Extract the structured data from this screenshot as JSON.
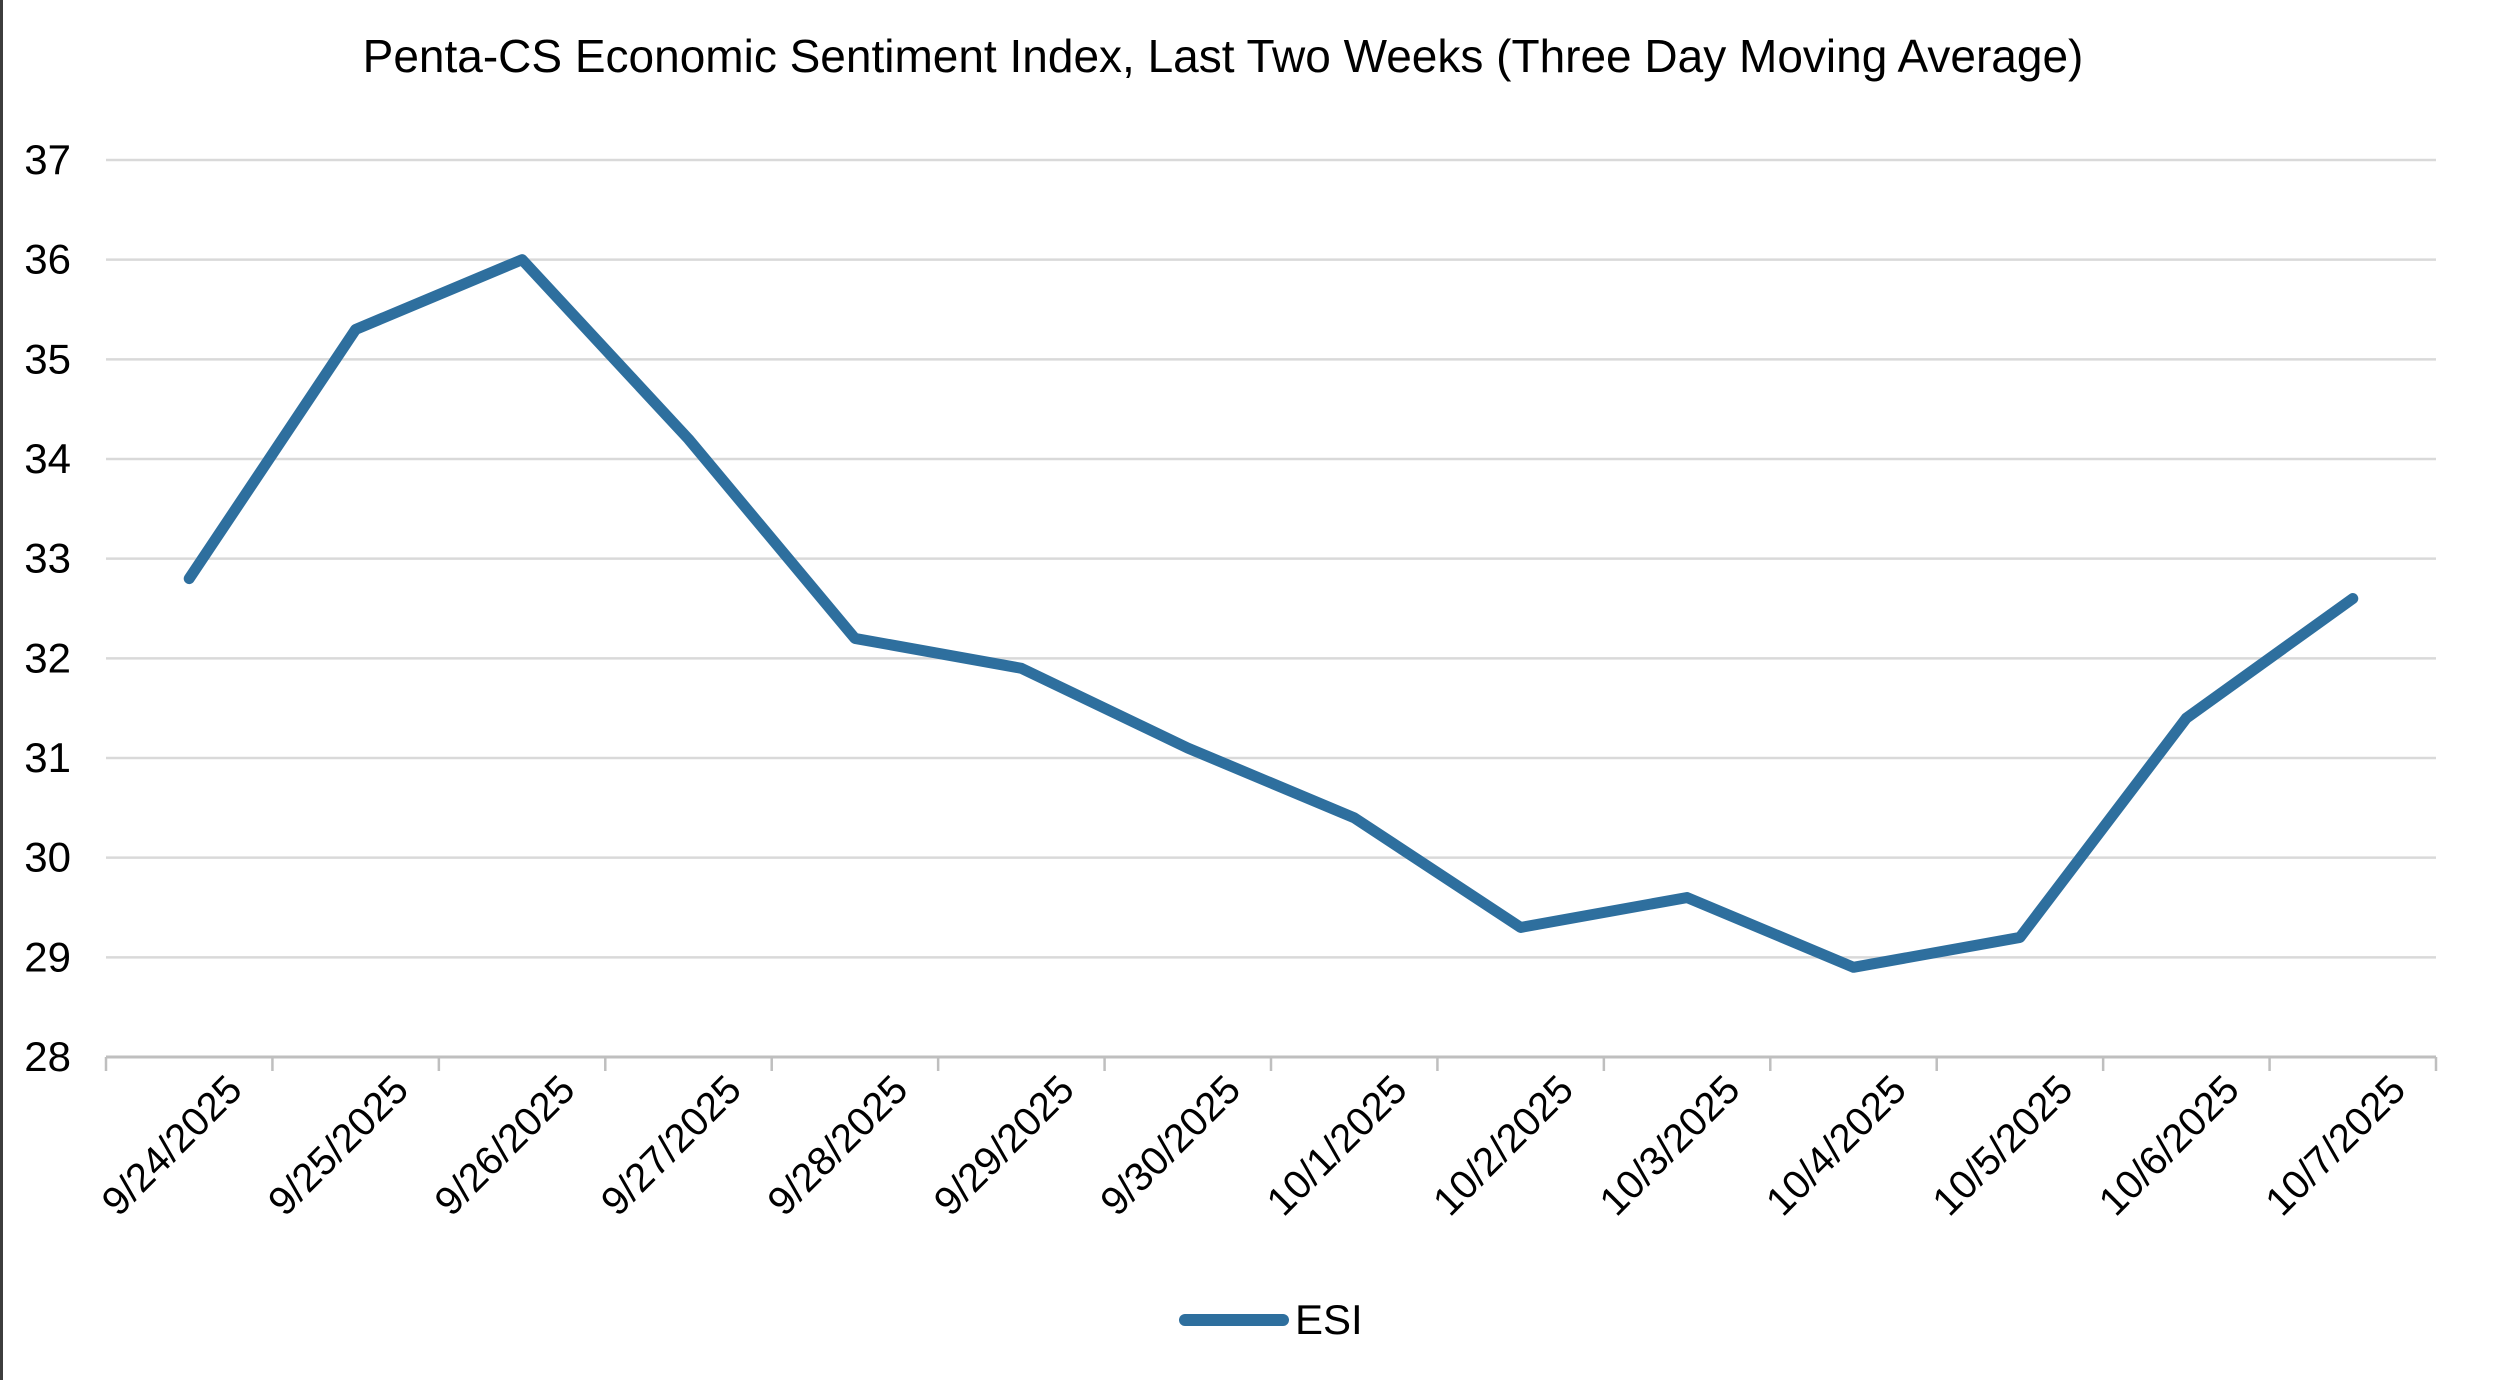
{
  "window": {
    "left_border_color": "#3d3d3d"
  },
  "chart_data": {
    "type": "line",
    "title": "Penta-CS Economic Sentiment Index, Last Two Weeks (Three Day Moving Average)",
    "categories": [
      "9/24/2025",
      "9/25/2025",
      "9/26/2025",
      "9/27/2025",
      "9/28/2025",
      "9/29/2025",
      "9/30/2025",
      "10/1/2025",
      "10/2/2025",
      "10/3/2025",
      "10/4/2025",
      "10/5/2025",
      "10/6/2025",
      "10/7/2025"
    ],
    "series": [
      {
        "name": "ESI",
        "values": [
          32.8,
          35.3,
          36.0,
          34.2,
          32.2,
          31.9,
          31.1,
          30.4,
          29.3,
          29.6,
          28.9,
          29.2,
          31.4,
          32.6
        ]
      }
    ],
    "xlabel": "",
    "ylabel": "",
    "ylim": [
      28,
      37
    ],
    "yticks": [
      28,
      29,
      30,
      31,
      32,
      33,
      34,
      35,
      36,
      37
    ],
    "grid": "horizontal",
    "legend_position": "bottom",
    "colors": {
      "line": "#2E6F9E",
      "gridline": "#D9D9D9",
      "axis": "#BFBFBF",
      "text": "#000000"
    }
  }
}
